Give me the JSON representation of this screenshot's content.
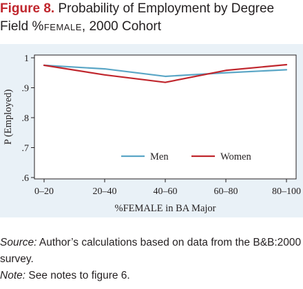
{
  "figure": {
    "label": "Figure 8.",
    "title_pre": " Probability of Employment by Degree Field ",
    "title_caps": "%female",
    "title_post": ", 2000 Cohort"
  },
  "notes": {
    "source_label": "Source:",
    "source_text": " Author’s calculations based on data from the B&B:2000 survey.",
    "note_label": "Note:",
    "note_text": " See notes to figure 6."
  },
  "colors": {
    "men": "#5aa6c6",
    "women": "#c0262d",
    "background": "#e9f1f7",
    "title_accent": "#c0262d"
  },
  "chart_data": {
    "type": "line",
    "categories": [
      "0–20",
      "20–40",
      "40–60",
      "60–80",
      "80–100"
    ],
    "series": [
      {
        "name": "Men",
        "values": [
          0.975,
          0.963,
          0.938,
          0.95,
          0.96
        ]
      },
      {
        "name": "Women",
        "values": [
          0.975,
          0.943,
          0.918,
          0.958,
          0.977
        ]
      }
    ],
    "xlabel": "%FEMALE in BA Major",
    "ylabel": "P (Employed)",
    "ylim": [
      0.6,
      1.0
    ],
    "yticks": [
      0.6,
      0.7,
      0.8,
      0.9,
      1.0
    ],
    "ytick_labels": [
      ".6",
      ".7",
      ".8",
      ".9",
      "1"
    ],
    "grid": false,
    "legend_position": "bottom-right"
  }
}
